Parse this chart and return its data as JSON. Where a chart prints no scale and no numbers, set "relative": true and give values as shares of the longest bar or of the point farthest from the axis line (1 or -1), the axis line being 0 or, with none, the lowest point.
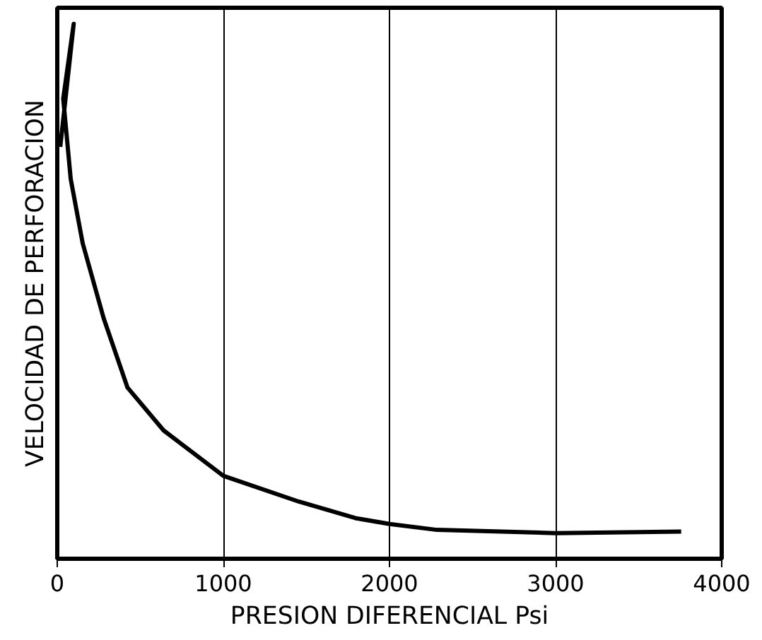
{
  "chart_data": {
    "type": "line",
    "relative": true,
    "xlabel": "PRESION DIFERENCIAL Psi",
    "ylabel": "VELOCIDAD DE PERFORACION",
    "xlim": [
      0,
      4000
    ],
    "xticks": [
      0,
      1000,
      2000,
      3000,
      4000
    ],
    "grid": "x",
    "marker": "none",
    "line_style": "solid",
    "series": [
      {
        "color": "#000000",
        "x": [
          18,
          99,
          36,
          81,
          153,
          279,
          423,
          640,
          1000,
          1453,
          1795,
          2000,
          2286,
          3000,
          3756
        ],
        "values": [
          0.77,
          1.0,
          0.86,
          0.71,
          0.59,
          0.45,
          0.32,
          0.24,
          0.155,
          0.107,
          0.076,
          0.065,
          0.054,
          0.048,
          0.051
        ]
      }
    ]
  }
}
